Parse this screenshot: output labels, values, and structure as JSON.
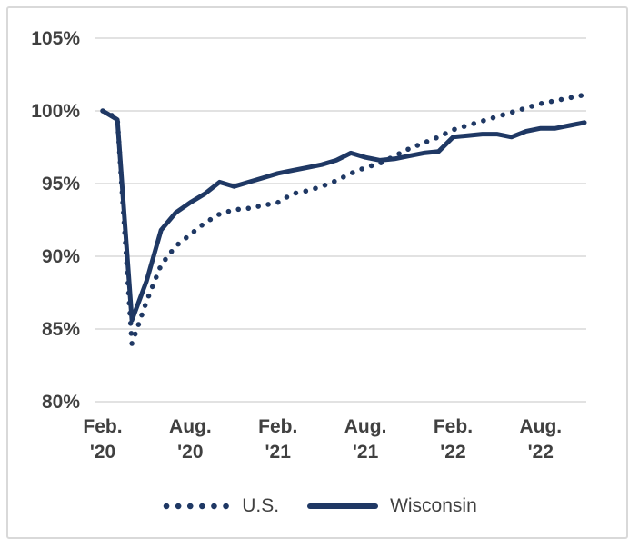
{
  "chart_data": {
    "type": "line",
    "title": "",
    "xlabel": "",
    "ylabel": "",
    "ylim": [
      80,
      105
    ],
    "grid": true,
    "legend_position": "bottom",
    "axis_text_color": "#404040",
    "gridline_color": "#d9d9d9",
    "frame_color": "#d9d9d9",
    "line_color": "#1F3864",
    "y_ticks": [
      105,
      100,
      95,
      90,
      85,
      80
    ],
    "y_tick_labels": [
      "105%",
      "100%",
      "95%",
      "90%",
      "85%",
      "80%"
    ],
    "x_tick_labels": [
      {
        "line1": "Feb.",
        "line2": "'20"
      },
      {
        "line1": "Aug.",
        "line2": "'20"
      },
      {
        "line1": "Feb.",
        "line2": "'21"
      },
      {
        "line1": "Aug.",
        "line2": "'21"
      },
      {
        "line1": "Feb.",
        "line2": "'22"
      },
      {
        "line1": "Aug.",
        "line2": "'22"
      }
    ],
    "x_tick_month_index": [
      0,
      6,
      12,
      18,
      24,
      30
    ],
    "x": [
      "Feb '20",
      "Mar '20",
      "Apr '20",
      "May '20",
      "Jun '20",
      "Jul '20",
      "Aug '20",
      "Sep '20",
      "Oct '20",
      "Nov '20",
      "Dec '20",
      "Jan '21",
      "Feb '21",
      "Mar '21",
      "Apr '21",
      "May '21",
      "Jun '21",
      "Jul '21",
      "Aug '21",
      "Sep '21",
      "Oct '21",
      "Nov '21",
      "Dec '21",
      "Jan '22",
      "Feb '22",
      "Mar '22",
      "Apr '22",
      "May '22",
      "Jun '22",
      "Jul '22",
      "Aug '22",
      "Sep '22",
      "Oct '22",
      "Nov '22"
    ],
    "series": [
      {
        "name": "U.S.",
        "style": "dotted",
        "values": [
          100.0,
          99.5,
          84.0,
          86.9,
          89.4,
          90.7,
          91.5,
          92.3,
          92.9,
          93.2,
          93.3,
          93.5,
          93.7,
          94.3,
          94.5,
          94.8,
          95.2,
          95.7,
          96.1,
          96.4,
          96.9,
          97.4,
          97.8,
          98.2,
          98.7,
          99.0,
          99.3,
          99.6,
          99.9,
          100.2,
          100.5,
          100.7,
          100.9,
          101.1
        ]
      },
      {
        "name": "Wisconsin",
        "style": "solid",
        "values": [
          100.0,
          99.4,
          85.6,
          88.3,
          91.8,
          93.0,
          93.7,
          94.3,
          95.1,
          94.8,
          95.1,
          95.4,
          95.7,
          95.9,
          96.1,
          96.3,
          96.6,
          97.1,
          96.8,
          96.6,
          96.7,
          96.9,
          97.1,
          97.2,
          98.2,
          98.3,
          98.4,
          98.4,
          98.2,
          98.6,
          98.8,
          98.8,
          99.0,
          99.2
        ]
      }
    ]
  }
}
